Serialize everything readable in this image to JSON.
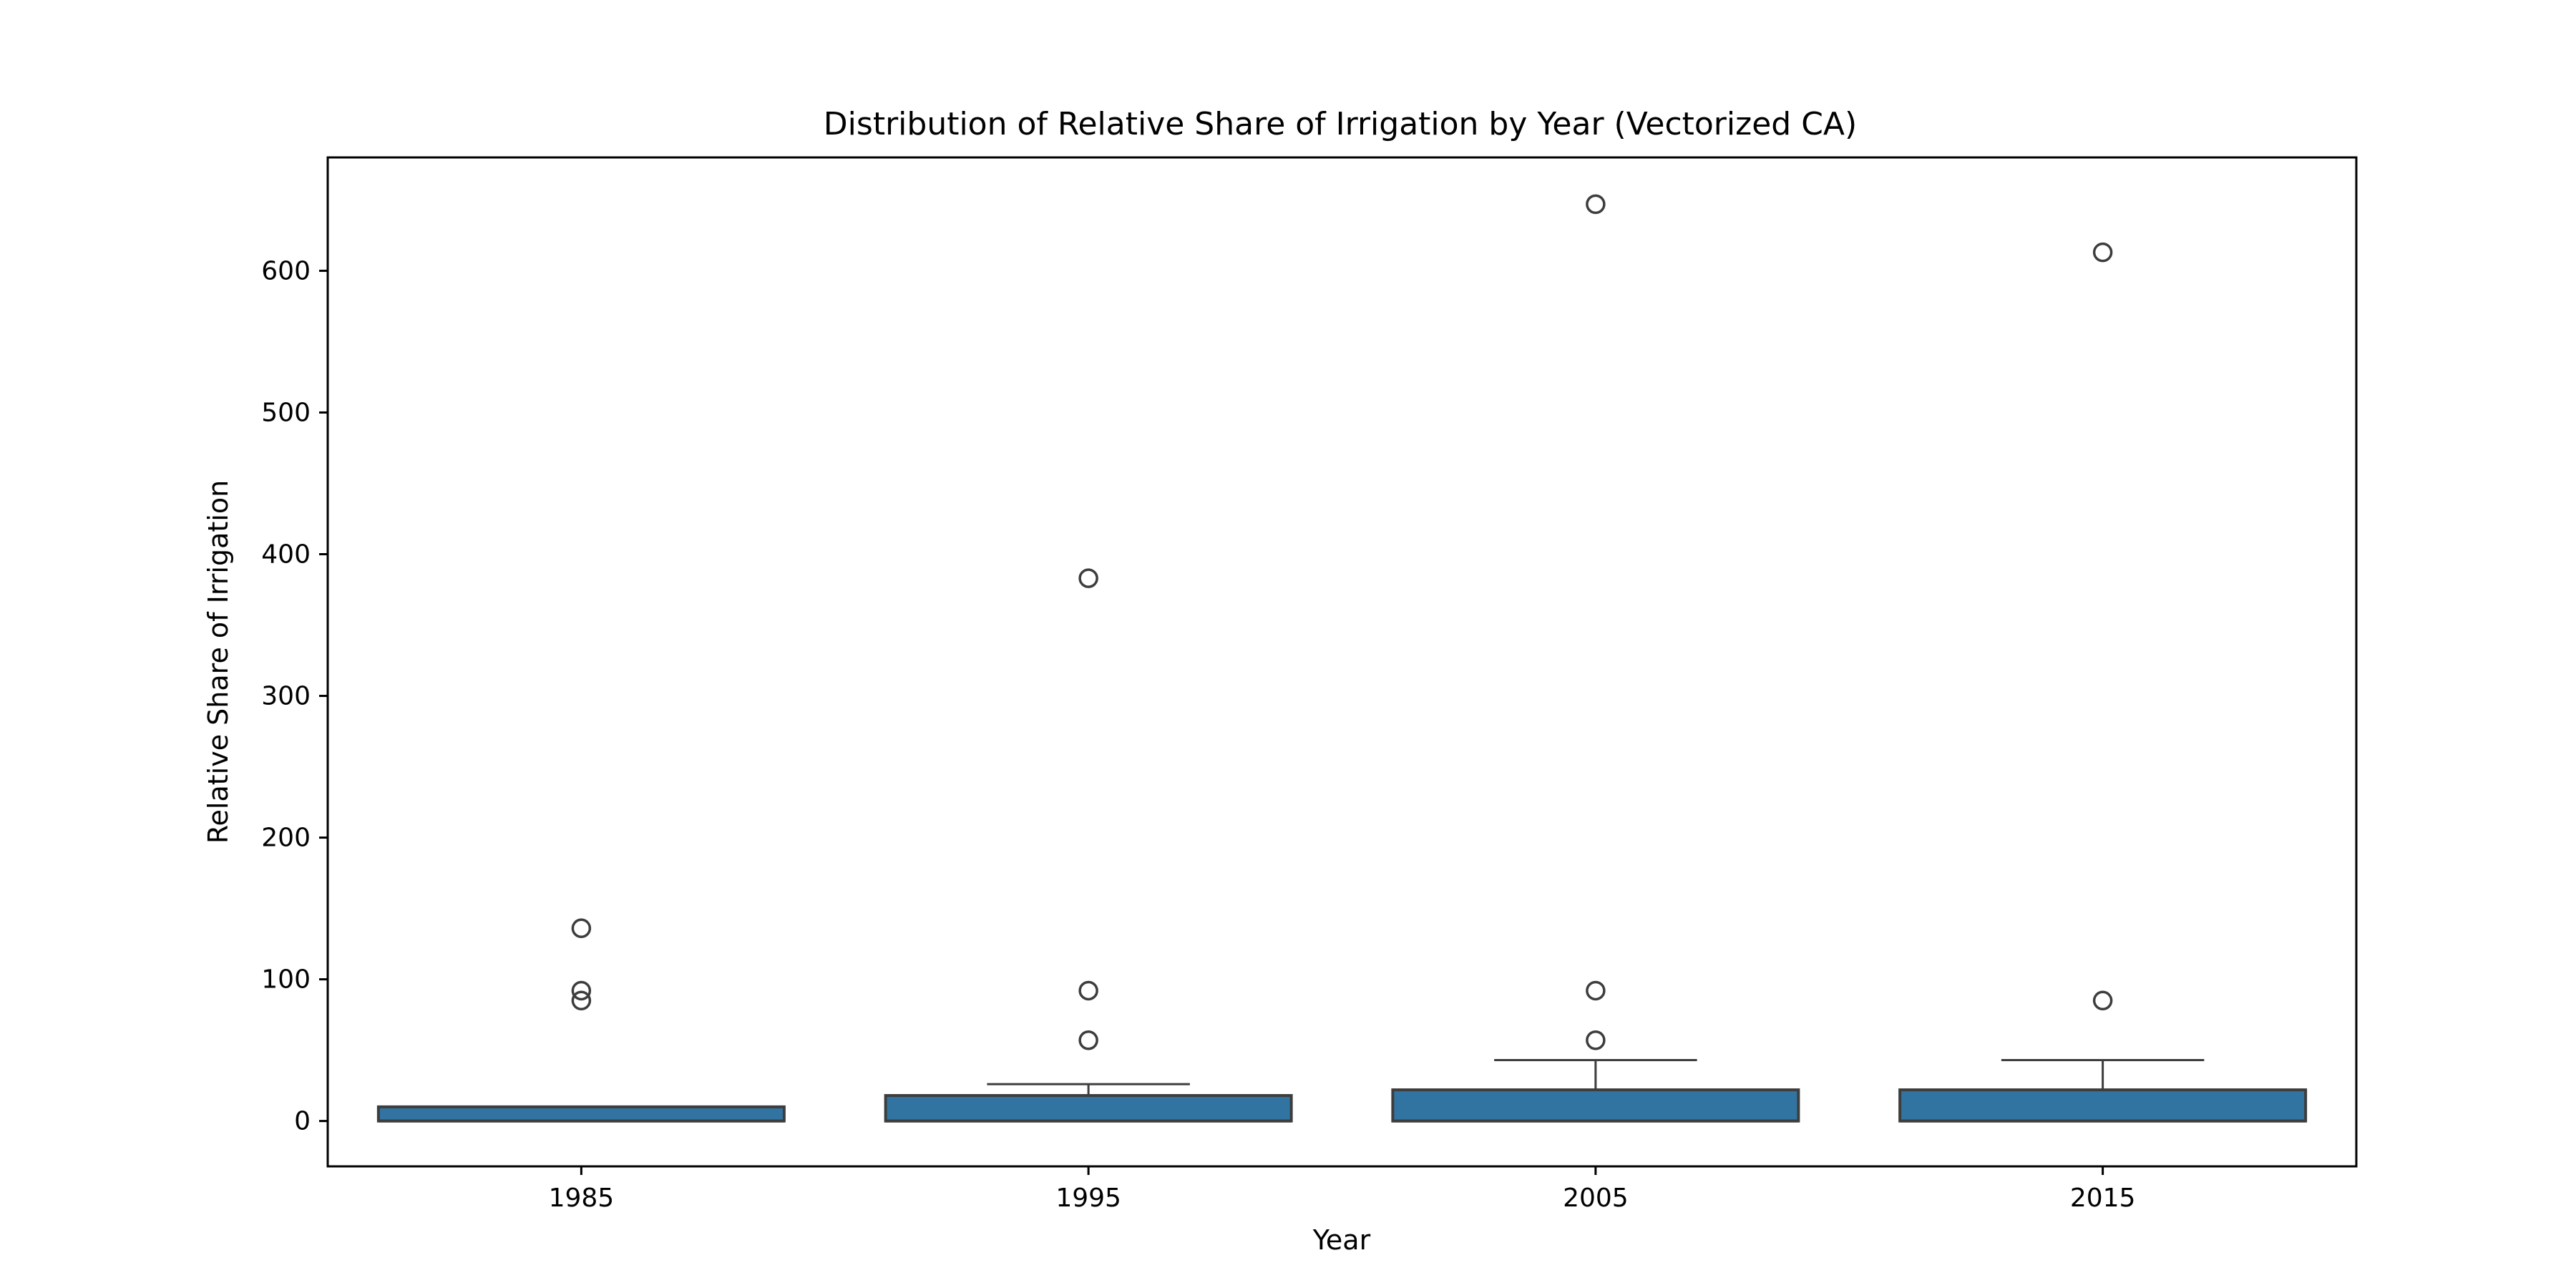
{
  "chart_data": {
    "type": "box",
    "title": "Distribution of Relative Share of Irrigation by Year (Vectorized CA)",
    "xlabel": "Year",
    "ylabel": "Relative Share of Irrigation",
    "categories": [
      "1985",
      "1995",
      "2005",
      "2015"
    ],
    "ylim": [
      -32,
      680
    ],
    "yticks": [
      0,
      100,
      200,
      300,
      400,
      500,
      600
    ],
    "grid": false,
    "colors": {
      "box_fill": "#3274a1",
      "box_edge": "#3d3d3d",
      "axes": "#000000"
    },
    "boxes": [
      {
        "category": "1985",
        "whisker_low": 0,
        "q1": 0,
        "median": 0,
        "q3": 10,
        "whisker_high": 10,
        "outliers": [
          136,
          92,
          85
        ]
      },
      {
        "category": "1995",
        "whisker_low": 0,
        "q1": 0,
        "median": 0,
        "q3": 18,
        "whisker_high": 26,
        "outliers": [
          383,
          92,
          57
        ]
      },
      {
        "category": "2005",
        "whisker_low": 0,
        "q1": 0,
        "median": 0,
        "q3": 22,
        "whisker_high": 43,
        "outliers": [
          647,
          92,
          57
        ]
      },
      {
        "category": "2015",
        "whisker_low": 0,
        "q1": 0,
        "median": 0,
        "q3": 22,
        "whisker_high": 43,
        "outliers": [
          613,
          85
        ]
      }
    ]
  }
}
